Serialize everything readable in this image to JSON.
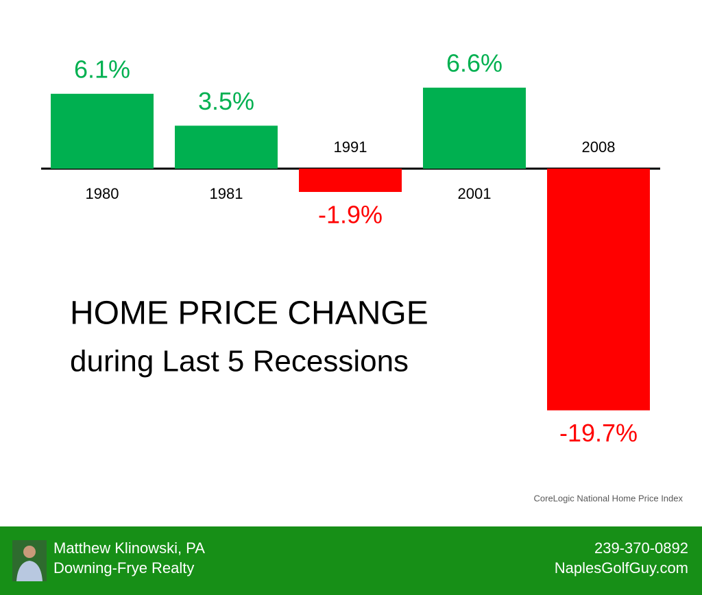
{
  "chart_data": {
    "type": "bar",
    "title": "HOME PRICE CHANGE",
    "subtitle": "during Last 5 Recessions",
    "source": "CoreLogic National Home Price Index",
    "categories": [
      "1980",
      "1981",
      "1991",
      "2001",
      "2008"
    ],
    "values": [
      6.1,
      3.5,
      -1.9,
      6.6,
      -19.7
    ],
    "value_labels": [
      "6.1%",
      "3.5%",
      "-1.9%",
      "6.6%",
      "-19.7%"
    ],
    "positive_color": "#00b050",
    "negative_color": "#ff0000"
  },
  "footer": {
    "name": "Matthew Klinowski, PA",
    "company": "Downing-Frye Realty",
    "phone": "239-370-0892",
    "website": "NaplesGolfGuy.com"
  }
}
